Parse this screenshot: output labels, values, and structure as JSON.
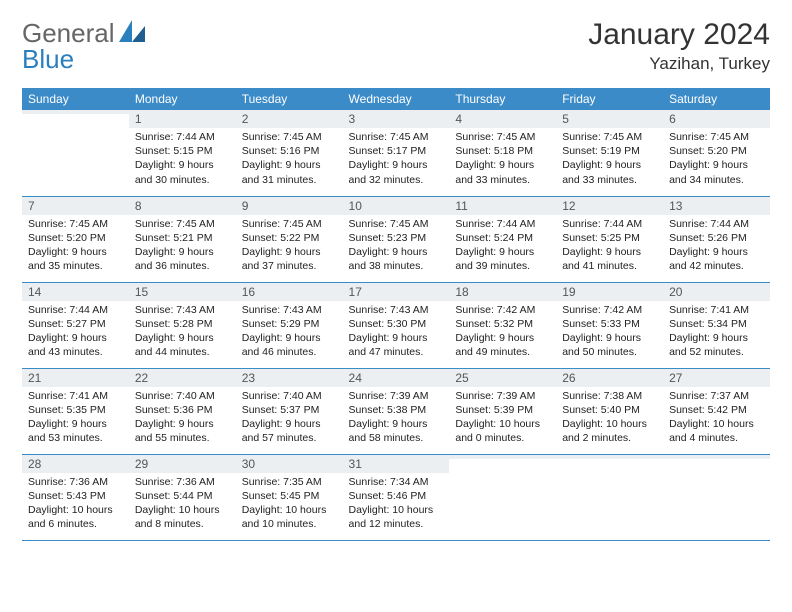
{
  "logo": {
    "text1": "General",
    "text2": "Blue"
  },
  "header": {
    "month": "January 2024",
    "location": "Yazihan, Turkey"
  },
  "colors": {
    "header_bg": "#3b8bc9",
    "header_fg": "#ffffff",
    "daynum_bg": "#eceff1",
    "rule": "#3b8bc9",
    "logo_blue": "#2a7fbf"
  },
  "weekdays": [
    "Sunday",
    "Monday",
    "Tuesday",
    "Wednesday",
    "Thursday",
    "Friday",
    "Saturday"
  ],
  "weeks": [
    [
      {
        "n": "",
        "sr": "",
        "ss": "",
        "dl": ""
      },
      {
        "n": "1",
        "sr": "Sunrise: 7:44 AM",
        "ss": "Sunset: 5:15 PM",
        "dl": "Daylight: 9 hours and 30 minutes."
      },
      {
        "n": "2",
        "sr": "Sunrise: 7:45 AM",
        "ss": "Sunset: 5:16 PM",
        "dl": "Daylight: 9 hours and 31 minutes."
      },
      {
        "n": "3",
        "sr": "Sunrise: 7:45 AM",
        "ss": "Sunset: 5:17 PM",
        "dl": "Daylight: 9 hours and 32 minutes."
      },
      {
        "n": "4",
        "sr": "Sunrise: 7:45 AM",
        "ss": "Sunset: 5:18 PM",
        "dl": "Daylight: 9 hours and 33 minutes."
      },
      {
        "n": "5",
        "sr": "Sunrise: 7:45 AM",
        "ss": "Sunset: 5:19 PM",
        "dl": "Daylight: 9 hours and 33 minutes."
      },
      {
        "n": "6",
        "sr": "Sunrise: 7:45 AM",
        "ss": "Sunset: 5:20 PM",
        "dl": "Daylight: 9 hours and 34 minutes."
      }
    ],
    [
      {
        "n": "7",
        "sr": "Sunrise: 7:45 AM",
        "ss": "Sunset: 5:20 PM",
        "dl": "Daylight: 9 hours and 35 minutes."
      },
      {
        "n": "8",
        "sr": "Sunrise: 7:45 AM",
        "ss": "Sunset: 5:21 PM",
        "dl": "Daylight: 9 hours and 36 minutes."
      },
      {
        "n": "9",
        "sr": "Sunrise: 7:45 AM",
        "ss": "Sunset: 5:22 PM",
        "dl": "Daylight: 9 hours and 37 minutes."
      },
      {
        "n": "10",
        "sr": "Sunrise: 7:45 AM",
        "ss": "Sunset: 5:23 PM",
        "dl": "Daylight: 9 hours and 38 minutes."
      },
      {
        "n": "11",
        "sr": "Sunrise: 7:44 AM",
        "ss": "Sunset: 5:24 PM",
        "dl": "Daylight: 9 hours and 39 minutes."
      },
      {
        "n": "12",
        "sr": "Sunrise: 7:44 AM",
        "ss": "Sunset: 5:25 PM",
        "dl": "Daylight: 9 hours and 41 minutes."
      },
      {
        "n": "13",
        "sr": "Sunrise: 7:44 AM",
        "ss": "Sunset: 5:26 PM",
        "dl": "Daylight: 9 hours and 42 minutes."
      }
    ],
    [
      {
        "n": "14",
        "sr": "Sunrise: 7:44 AM",
        "ss": "Sunset: 5:27 PM",
        "dl": "Daylight: 9 hours and 43 minutes."
      },
      {
        "n": "15",
        "sr": "Sunrise: 7:43 AM",
        "ss": "Sunset: 5:28 PM",
        "dl": "Daylight: 9 hours and 44 minutes."
      },
      {
        "n": "16",
        "sr": "Sunrise: 7:43 AM",
        "ss": "Sunset: 5:29 PM",
        "dl": "Daylight: 9 hours and 46 minutes."
      },
      {
        "n": "17",
        "sr": "Sunrise: 7:43 AM",
        "ss": "Sunset: 5:30 PM",
        "dl": "Daylight: 9 hours and 47 minutes."
      },
      {
        "n": "18",
        "sr": "Sunrise: 7:42 AM",
        "ss": "Sunset: 5:32 PM",
        "dl": "Daylight: 9 hours and 49 minutes."
      },
      {
        "n": "19",
        "sr": "Sunrise: 7:42 AM",
        "ss": "Sunset: 5:33 PM",
        "dl": "Daylight: 9 hours and 50 minutes."
      },
      {
        "n": "20",
        "sr": "Sunrise: 7:41 AM",
        "ss": "Sunset: 5:34 PM",
        "dl": "Daylight: 9 hours and 52 minutes."
      }
    ],
    [
      {
        "n": "21",
        "sr": "Sunrise: 7:41 AM",
        "ss": "Sunset: 5:35 PM",
        "dl": "Daylight: 9 hours and 53 minutes."
      },
      {
        "n": "22",
        "sr": "Sunrise: 7:40 AM",
        "ss": "Sunset: 5:36 PM",
        "dl": "Daylight: 9 hours and 55 minutes."
      },
      {
        "n": "23",
        "sr": "Sunrise: 7:40 AM",
        "ss": "Sunset: 5:37 PM",
        "dl": "Daylight: 9 hours and 57 minutes."
      },
      {
        "n": "24",
        "sr": "Sunrise: 7:39 AM",
        "ss": "Sunset: 5:38 PM",
        "dl": "Daylight: 9 hours and 58 minutes."
      },
      {
        "n": "25",
        "sr": "Sunrise: 7:39 AM",
        "ss": "Sunset: 5:39 PM",
        "dl": "Daylight: 10 hours and 0 minutes."
      },
      {
        "n": "26",
        "sr": "Sunrise: 7:38 AM",
        "ss": "Sunset: 5:40 PM",
        "dl": "Daylight: 10 hours and 2 minutes."
      },
      {
        "n": "27",
        "sr": "Sunrise: 7:37 AM",
        "ss": "Sunset: 5:42 PM",
        "dl": "Daylight: 10 hours and 4 minutes."
      }
    ],
    [
      {
        "n": "28",
        "sr": "Sunrise: 7:36 AM",
        "ss": "Sunset: 5:43 PM",
        "dl": "Daylight: 10 hours and 6 minutes."
      },
      {
        "n": "29",
        "sr": "Sunrise: 7:36 AM",
        "ss": "Sunset: 5:44 PM",
        "dl": "Daylight: 10 hours and 8 minutes."
      },
      {
        "n": "30",
        "sr": "Sunrise: 7:35 AM",
        "ss": "Sunset: 5:45 PM",
        "dl": "Daylight: 10 hours and 10 minutes."
      },
      {
        "n": "31",
        "sr": "Sunrise: 7:34 AM",
        "ss": "Sunset: 5:46 PM",
        "dl": "Daylight: 10 hours and 12 minutes."
      },
      {
        "n": "",
        "sr": "",
        "ss": "",
        "dl": ""
      },
      {
        "n": "",
        "sr": "",
        "ss": "",
        "dl": ""
      },
      {
        "n": "",
        "sr": "",
        "ss": "",
        "dl": ""
      }
    ]
  ]
}
